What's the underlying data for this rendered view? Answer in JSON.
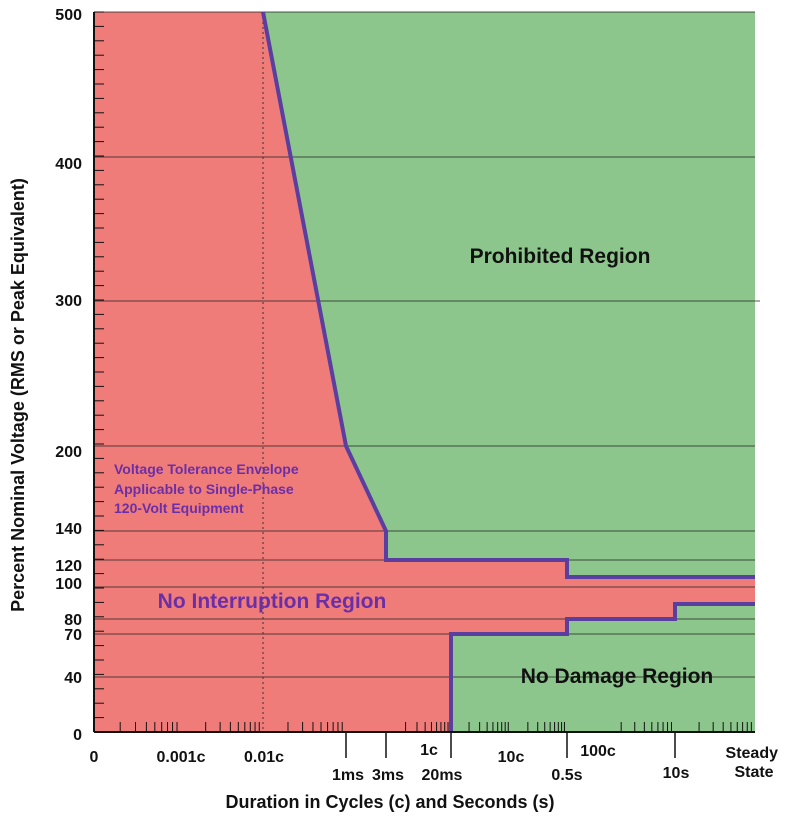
{
  "chart_data": {
    "type": "area",
    "title": "",
    "ylabel": "Percent Nominal Voltage (RMS or Peak Equivalent)",
    "xlabel": "Duration in Cycles (c) and Seconds (s)",
    "y_ticks": [
      "0",
      "40",
      "70",
      "80",
      "100",
      "120",
      "140",
      "200",
      "300",
      "400",
      "500"
    ],
    "x_ticks": [
      {
        "label": "0"
      },
      {
        "label": "0.001c"
      },
      {
        "label": "0.01c"
      },
      {
        "label": "1ms"
      },
      {
        "label": "3ms"
      },
      {
        "label": "1c"
      },
      {
        "label": "20ms"
      },
      {
        "label": "10c"
      },
      {
        "label": "0.5s"
      },
      {
        "label": "100c"
      },
      {
        "label": "10s"
      },
      {
        "label": "Steady State"
      }
    ],
    "regions": [
      {
        "name": "Prohibited Region"
      },
      {
        "name": "No Interruption Region"
      },
      {
        "name": "No Damage Region"
      }
    ],
    "annotation_lines": [
      "Voltage Tolerance Envelope",
      "Applicable to Single-Phase",
      "120-Volt Equipment"
    ],
    "upper_envelope": [
      {
        "duration": "0.01c",
        "voltage": 500
      },
      {
        "duration": "1ms",
        "voltage": 200
      },
      {
        "duration": "3ms",
        "voltage": 140
      },
      {
        "duration": "3ms",
        "voltage": 120
      },
      {
        "duration": "0.5s",
        "voltage": 120
      },
      {
        "duration": "0.5s",
        "voltage": 110
      },
      {
        "duration": "Steady State",
        "voltage": 110
      }
    ],
    "lower_envelope": [
      {
        "duration": "20ms",
        "voltage": 0
      },
      {
        "duration": "20ms",
        "voltage": 70
      },
      {
        "duration": "0.5s",
        "voltage": 70
      },
      {
        "duration": "0.5s",
        "voltage": 80
      },
      {
        "duration": "10s",
        "voltage": 80
      },
      {
        "duration": "10s",
        "voltage": 90
      },
      {
        "duration": "Steady State",
        "voltage": 90
      }
    ],
    "colors": {
      "prohibited": "#8cc68c",
      "no_damage": "#8cc68c",
      "no_interruption": "#f07c7a",
      "envelope": "#5a3fa0",
      "annotation": "#6a2fa8"
    }
  }
}
